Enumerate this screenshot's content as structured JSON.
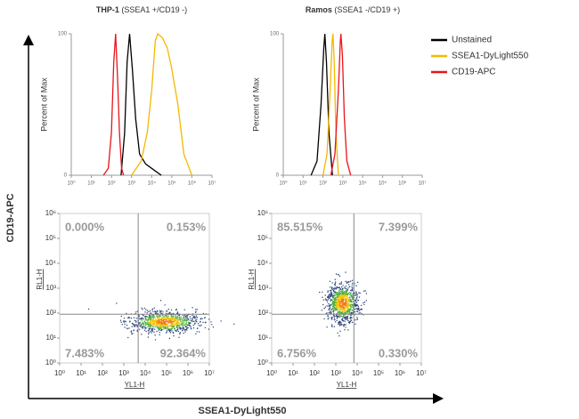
{
  "figure": {
    "y_label": "CD19-APC",
    "x_label": "SSEA1-DyLight550"
  },
  "chart_data": [
    {
      "type": "line",
      "title": "THP-1",
      "subtitle": "(SSEA1 +/CD19 -)",
      "y_label": "Percent of Max",
      "xscale": "log",
      "xlim": [
        1,
        10000000
      ],
      "ylim": [
        0,
        100
      ],
      "yticks": [
        0,
        100
      ],
      "xticks": [
        {
          "value": 1,
          "label": "10⁰"
        },
        {
          "value": 10,
          "label": "10¹"
        },
        {
          "value": 100,
          "label": "10²"
        },
        {
          "value": 1000,
          "label": "10³"
        },
        {
          "value": 10000,
          "label": "10⁴"
        },
        {
          "value": 100000,
          "label": "10⁵"
        },
        {
          "value": 1000000,
          "label": "10⁶"
        },
        {
          "value": 10000000,
          "label": "10⁷"
        }
      ],
      "legend": "outside-right",
      "series": [
        {
          "name": "Unstained",
          "color": "#000000",
          "x": [
            300,
            450,
            600,
            800,
            1100,
            1600,
            2500,
            5000,
            15000,
            30000
          ],
          "values": [
            0,
            30,
            80,
            100,
            75,
            40,
            15,
            8,
            3,
            0
          ]
        },
        {
          "name": "SSEA1-DyLight550",
          "color": "#f5b800",
          "x": [
            1000,
            3000,
            6000,
            10000,
            15000,
            20000,
            35000,
            60000,
            100000,
            200000,
            400000,
            1000000
          ],
          "values": [
            0,
            10,
            30,
            60,
            95,
            100,
            97,
            90,
            75,
            50,
            15,
            0
          ]
        },
        {
          "name": "CD19-APC",
          "color": "#e8141c",
          "x": [
            40,
            70,
            100,
            130,
            160,
            200,
            250,
            320,
            400
          ],
          "values": [
            0,
            5,
            30,
            80,
            100,
            70,
            30,
            5,
            0
          ]
        }
      ]
    },
    {
      "type": "line",
      "title": "Ramos",
      "subtitle": "(SSEA1 -/CD19 +)",
      "y_label": "Percent of Max",
      "xscale": "log",
      "xlim": [
        1,
        10000000
      ],
      "ylim": [
        0,
        100
      ],
      "yticks": [
        0,
        100
      ],
      "xticks": [
        {
          "value": 1,
          "label": "10⁰"
        },
        {
          "value": 10,
          "label": "10¹"
        },
        {
          "value": 100,
          "label": "10²"
        },
        {
          "value": 1000,
          "label": "10³"
        },
        {
          "value": 10000,
          "label": "10⁴"
        },
        {
          "value": 100000,
          "label": "10⁵"
        },
        {
          "value": 1000000,
          "label": "10⁶"
        },
        {
          "value": 10000000,
          "label": "10⁷"
        }
      ],
      "series": [
        {
          "color": "#000000",
          "x": [
            25,
            50,
            80,
            110,
            125,
            150,
            200,
            300
          ],
          "values": [
            0,
            10,
            50,
            90,
            100,
            80,
            30,
            0
          ]
        },
        {
          "color": "#f5b800",
          "x": [
            100,
            160,
            230,
            290,
            320,
            370,
            450,
            600
          ],
          "values": [
            0,
            15,
            60,
            95,
            100,
            80,
            30,
            0
          ]
        },
        {
          "color": "#e8141c",
          "x": [
            250,
            400,
            600,
            750,
            800,
            950,
            1200,
            1600,
            2500
          ],
          "values": [
            0,
            15,
            60,
            95,
            100,
            85,
            40,
            10,
            0
          ]
        }
      ]
    },
    {
      "type": "quadrant",
      "x_label": "YL1-H",
      "y_label": "RL1-H",
      "xscale": "log",
      "yscale": "log",
      "xlim": [
        1,
        10000000
      ],
      "ylim": [
        1,
        1000000
      ],
      "gate_x": 4700,
      "gate_y": 90,
      "xticks": [
        {
          "value": 1,
          "label": "10⁰"
        },
        {
          "value": 10,
          "label": "10¹"
        },
        {
          "value": 100,
          "label": "10²"
        },
        {
          "value": 1000,
          "label": "10³"
        },
        {
          "value": 10000,
          "label": "10⁴"
        },
        {
          "value": 100000,
          "label": "10⁵"
        },
        {
          "value": 1000000,
          "label": "10⁶"
        },
        {
          "value": 10000000,
          "label": "10⁷"
        }
      ],
      "yticks": [
        {
          "value": 1,
          "label": "10⁰"
        },
        {
          "value": 10,
          "label": "10¹"
        },
        {
          "value": 100,
          "label": "10²"
        },
        {
          "value": 1000,
          "label": "10³"
        },
        {
          "value": 10000,
          "label": "10⁴"
        },
        {
          "value": 100000,
          "label": "10⁵"
        },
        {
          "value": 1000000,
          "label": "10⁶"
        }
      ],
      "values": [
        0,
        0.153,
        7.483,
        92.364
      ],
      "value_labels": [
        "0.000%",
        "0.153%",
        "7.483%",
        "92.364%"
      ]
    },
    {
      "type": "quadrant",
      "x_label": "YL1-H",
      "y_label": "RL1-H",
      "xscale": "log",
      "yscale": "log",
      "xlim": [
        1,
        10000000
      ],
      "ylim": [
        1,
        1000000
      ],
      "gate_x": 7000,
      "gate_y": 90,
      "xticks": [
        {
          "value": 1,
          "label": "10⁰"
        },
        {
          "value": 10,
          "label": "10¹"
        },
        {
          "value": 100,
          "label": "10²"
        },
        {
          "value": 1000,
          "label": "10³"
        },
        {
          "value": 10000,
          "label": "10⁴"
        },
        {
          "value": 100000,
          "label": "10⁵"
        },
        {
          "value": 1000000,
          "label": "10⁶"
        },
        {
          "value": 10000000,
          "label": "10⁷"
        }
      ],
      "yticks": [
        {
          "value": 1,
          "label": "10⁰"
        },
        {
          "value": 10,
          "label": "10¹"
        },
        {
          "value": 100,
          "label": "10²"
        },
        {
          "value": 1000,
          "label": "10³"
        },
        {
          "value": 10000,
          "label": "10⁴"
        },
        {
          "value": 100000,
          "label": "10⁵"
        },
        {
          "value": 1000000,
          "label": "10⁶"
        }
      ],
      "values": [
        85.515,
        7.399,
        6.756,
        0.33
      ],
      "value_labels": [
        "85.515%",
        "7.399%",
        "6.756%",
        "0.330%"
      ]
    }
  ]
}
